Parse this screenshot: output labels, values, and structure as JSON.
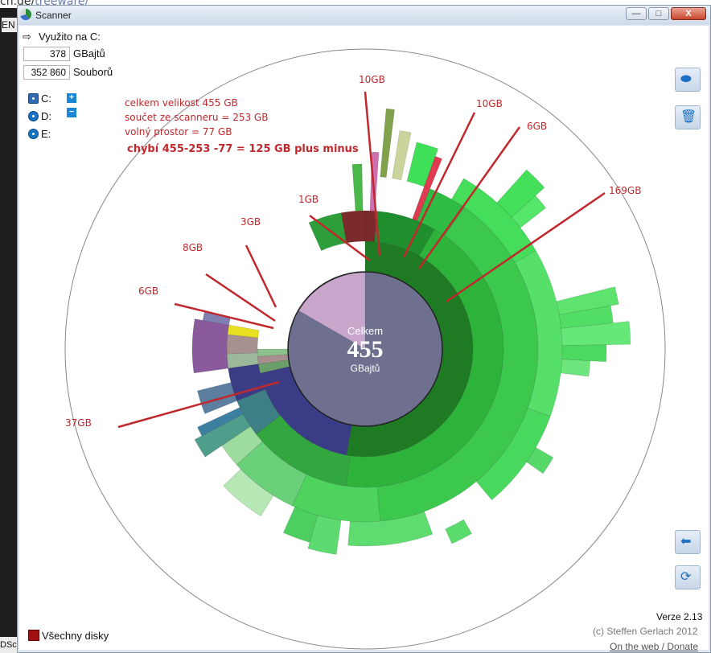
{
  "background": {
    "url_text": "ch.de/",
    "url_link": "treeware/",
    "left_label": "EN",
    "left_bottom": "DSc"
  },
  "window": {
    "title": "Scanner",
    "min_label": "—",
    "max_label": "□",
    "close_label": "X"
  },
  "info": {
    "path": "Využito na C:",
    "size_value": "378",
    "size_unit": "GBajtů",
    "files_value": "352 860",
    "files_unit": "Souborů"
  },
  "drives": [
    {
      "label": "C:"
    },
    {
      "label": "D:"
    },
    {
      "label": "E:"
    }
  ],
  "zoom": {
    "plus": "+",
    "minus": "−"
  },
  "annotation": {
    "line1": "celkem velikost 455 GB",
    "line2": "součet ze scanneru = 253 GB",
    "line3": "volný prostor =  77 GB",
    "line4": "chybí 455-253 -77 = 125 GB plus minus"
  },
  "center": {
    "label_top": "Celkem",
    "value": "455",
    "unit": "GBajtů"
  },
  "callouts": [
    {
      "text": "10GB",
      "color": "#c0282d"
    },
    {
      "text": "10GB",
      "color": "#c0282d"
    },
    {
      "text": "6GB",
      "color": "#c0282d"
    },
    {
      "text": "169GB",
      "color": "#c0282d"
    },
    {
      "text": "1GB",
      "color": "#c0282d"
    },
    {
      "text": "3GB",
      "color": "#c0282d"
    },
    {
      "text": "8GB",
      "color": "#c0282d"
    },
    {
      "text": "6GB",
      "color": "#c0282d"
    },
    {
      "text": "37GB",
      "color": "#c0282d"
    }
  ],
  "footer": {
    "version": "Verze 2.13",
    "copyright": "(c) Steffen Gerlach 2012",
    "donate": "On the web / Donate",
    "all_disks": "Všechny disky"
  },
  "colors": {
    "center_fill": "#6f7090",
    "free_slice": "#c9a6cc",
    "ring_dark": "#1f7a24",
    "ring_mid": "#2db33a",
    "ring_light": "#3fd85a",
    "navy": "#3a3d85",
    "annotation_red": "#c0282d"
  }
}
